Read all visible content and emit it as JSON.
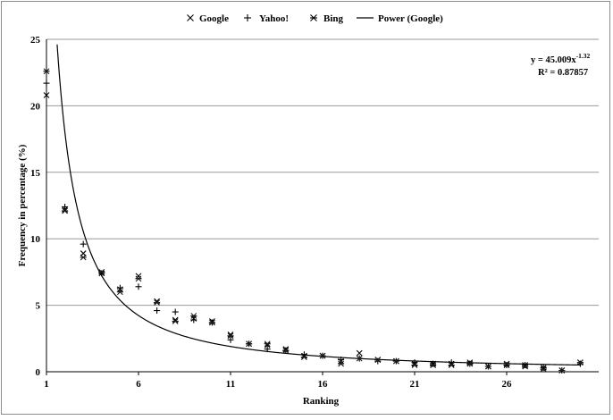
{
  "chart_data": {
    "type": "scatter",
    "xlabel": "Ranking",
    "ylabel": "Frequency in percentage (%)",
    "xlim": [
      1,
      31
    ],
    "ylim": [
      0,
      25
    ],
    "x_ticks": [
      1,
      6,
      11,
      16,
      21,
      26
    ],
    "y_ticks": [
      0,
      5,
      10,
      15,
      20,
      25
    ],
    "grid": "horizontal",
    "legend_position": "top",
    "legend": [
      "Google",
      "Yahoo!",
      "Bing",
      "Power (Google)"
    ],
    "series": [
      {
        "name": "Google",
        "marker": "x",
        "x": [
          1,
          2,
          3,
          4,
          5,
          6,
          7,
          8,
          9,
          10,
          11,
          12,
          13,
          14,
          15,
          16,
          17,
          18,
          19,
          20,
          21,
          22,
          23,
          24,
          25,
          26,
          27,
          28,
          29,
          30
        ],
        "y": [
          20.8,
          12.2,
          8.9,
          7.4,
          6.2,
          7.2,
          5.3,
          3.9,
          4.0,
          3.8,
          2.8,
          2.1,
          2.0,
          1.7,
          1.2,
          1.2,
          0.8,
          1.4,
          0.9,
          0.8,
          0.6,
          0.6,
          0.6,
          0.7,
          0.4,
          0.5,
          0.5,
          0.3,
          0.1,
          0.7
        ]
      },
      {
        "name": "Yahoo!",
        "marker": "+",
        "x": [
          1,
          2,
          3,
          4,
          5,
          6,
          7,
          8,
          9,
          10,
          11,
          12,
          13,
          14,
          15,
          16,
          17,
          18,
          19,
          20,
          21,
          22,
          23,
          24,
          25,
          26,
          27,
          28,
          29,
          30
        ],
        "y": [
          21.7,
          12.4,
          9.6,
          7.4,
          6.3,
          6.4,
          4.6,
          4.5,
          3.9,
          3.7,
          2.4,
          2.1,
          1.7,
          1.6,
          1.3,
          1.2,
          0.9,
          1.0,
          0.8,
          0.8,
          0.7,
          0.6,
          0.7,
          0.6,
          0.4,
          0.5,
          0.5,
          0.3,
          0.1,
          0.6
        ]
      },
      {
        "name": "Bing",
        "marker": "asterisk",
        "x": [
          1,
          2,
          3,
          4,
          5,
          6,
          7,
          8,
          9,
          10,
          11,
          12,
          13,
          14,
          15,
          16,
          17,
          18,
          19,
          20,
          21,
          22,
          23,
          24,
          25,
          26,
          27,
          28,
          29,
          30
        ],
        "y": [
          22.6,
          12.1,
          8.6,
          7.5,
          6.0,
          7.0,
          5.2,
          3.8,
          4.2,
          3.7,
          2.7,
          2.1,
          2.1,
          1.6,
          1.1,
          1.2,
          0.6,
          1.0,
          0.9,
          0.8,
          0.5,
          0.5,
          0.5,
          0.6,
          0.4,
          0.6,
          0.4,
          0.2,
          0.1,
          0.7
        ]
      }
    ],
    "trendline": {
      "name": "Power (Google)",
      "type": "power",
      "coefficient": 45.009,
      "exponent": -1.32,
      "equation_prefix": "y = 45.009x",
      "equation_exponent": "-1.32",
      "r2_label": "R² = 0.87857"
    }
  }
}
